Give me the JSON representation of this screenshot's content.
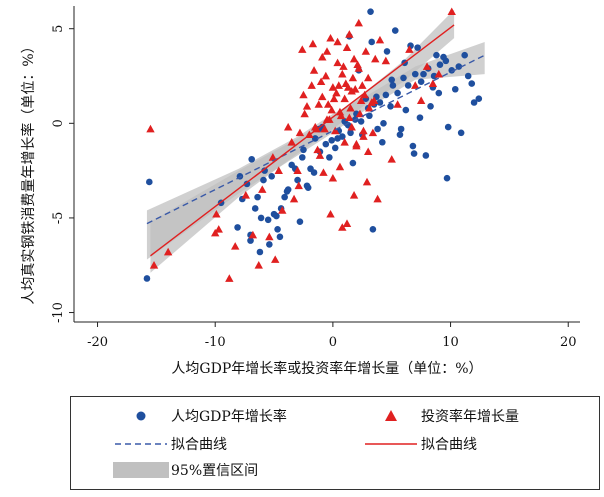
{
  "chart_data": {
    "type": "scatter",
    "title": "",
    "xlabel": "人均GDP年增长率或投资率年增长量（单位：%）",
    "ylabel": "人均真实钢铁消费量年增长率（单位：%）",
    "xlim": [
      -22,
      21
    ],
    "ylim": [
      -10.5,
      6.2
    ],
    "xticks": [
      -20,
      -10,
      0,
      10,
      20
    ],
    "xtick_labels": [
      "-20",
      "-10",
      "0",
      "10",
      "20"
    ],
    "yticks": [
      -10,
      -5,
      0,
      5
    ],
    "ytick_labels": [
      "-10",
      "-5",
      "0",
      "5"
    ],
    "grid": false,
    "legend_position": "bottom",
    "colors": {
      "gdp": "#1f4f9e",
      "invest": "#e02020",
      "ci": "#c0c0c0"
    },
    "series": [
      {
        "name": "人均GDP年增长率",
        "marker": "circle",
        "x": [
          -15.8,
          -15.6,
          -9.5,
          -8.1,
          -7.7,
          -7.0,
          -6.6,
          -6.2,
          -5.5,
          -5.0,
          -4.8,
          -4.5,
          -7.9,
          -7.3,
          -6.9,
          -5.8,
          -4.1,
          -3.5,
          -3.0,
          -2.6,
          -2.2,
          -1.9,
          -1.5,
          -1.1,
          -0.6,
          -0.1,
          0.5,
          1.0,
          1.5,
          2.0,
          2.4,
          3.0,
          3.5,
          4.0,
          4.5,
          5.1,
          5.5,
          6.0,
          6.4,
          7.0,
          7.5,
          8.1,
          8.6,
          9.1,
          9.6,
          10.1,
          10.7,
          11.2,
          11.8,
          12.4,
          -6.4,
          -5.9,
          -5.2,
          -4.4,
          -3.8,
          -3.2,
          -2.8,
          -2.1,
          -1.6,
          -0.9,
          -0.3,
          0.2,
          0.8,
          1.3,
          1.9,
          2.5,
          3.1,
          3.8,
          4.3,
          4.9,
          5.7,
          6.2,
          6.8,
          7.4,
          7.9,
          8.5,
          9.0,
          9.8,
          10.4,
          11.5,
          2.2,
          4.6,
          6.6,
          8.8,
          1.4,
          3.3,
          5.3,
          7.2,
          9.4,
          12.0,
          3.2,
          6.1,
          7.7,
          2.8,
          4.2,
          5.8,
          9.7,
          -2.5,
          -1.2,
          0.4,
          1.7,
          3.7,
          5.0,
          8.3,
          10.9,
          -3.9,
          -4.7,
          -6.1,
          -5.4,
          -7.0,
          3.4,
          6.9
        ],
        "y": [
          -8.2,
          -3.1,
          -4.2,
          -5.5,
          -4.0,
          -6.2,
          -4.5,
          -6.8,
          -5.1,
          -4.8,
          -4.9,
          -6.0,
          -2.8,
          -3.2,
          -1.9,
          -2.5,
          -3.9,
          -2.2,
          -3.0,
          -1.8,
          -3.3,
          -2.4,
          -0.8,
          -1.5,
          -1.1,
          -0.9,
          -0.4,
          0.1,
          -0.5,
          0.5,
          0.1,
          0.8,
          1.0,
          1.1,
          1.5,
          2.0,
          1.6,
          2.4,
          2.0,
          2.6,
          2.2,
          2.9,
          2.5,
          3.1,
          3.3,
          2.8,
          3.0,
          3.6,
          2.1,
          1.3,
          -3.9,
          -3.0,
          -2.8,
          -4.5,
          -3.5,
          -2.4,
          -5.2,
          -3.4,
          -2.6,
          -0.2,
          -1.8,
          -1.3,
          -0.7,
          -0.1,
          0.2,
          -0.6,
          0.4,
          -0.3,
          0.0,
          0.9,
          -0.6,
          0.7,
          -1.2,
          0.3,
          -1.7,
          1.9,
          1.6,
          -0.2,
          1.8,
          2.5,
          2.8,
          3.8,
          4.1,
          3.6,
          4.6,
          4.3,
          4.9,
          4.0,
          3.5,
          1.1,
          5.9,
          3.2,
          2.6,
          1.3,
          -1.0,
          -0.3,
          -2.9,
          -1.4,
          -0.3,
          -0.8,
          -2.1,
          1.4,
          2.3,
          0.9,
          -0.5,
          -3.6,
          -5.6,
          -5.0,
          -6.4,
          -5.9,
          -5.6,
          -1.6
        ],
        "fit": {
          "x": [
            -15.8,
            12.9
          ],
          "y": [
            -5.3,
            3.6
          ]
        }
      },
      {
        "name": "投资率年增长量",
        "marker": "triangle",
        "x": [
          -15.2,
          -15.5,
          -14.0,
          -10.0,
          -9.7,
          -8.3,
          -7.4,
          -6.8,
          -6.0,
          -5.1,
          -4.3,
          -3.5,
          -3.0,
          -2.5,
          -2.0,
          -1.6,
          -1.3,
          -1.0,
          -0.7,
          -0.4,
          -0.2,
          0.0,
          0.2,
          0.4,
          0.6,
          0.8,
          1.0,
          1.2,
          1.4,
          1.6,
          1.8,
          2.0,
          2.2,
          2.4,
          2.6,
          2.8,
          3.0,
          3.3,
          3.6,
          4.0,
          4.5,
          5.0,
          5.5,
          6.5,
          7.0,
          7.5,
          8.0,
          8.5,
          9.0,
          10.1,
          -2.8,
          -2.2,
          -1.5,
          -0.9,
          -0.5,
          -0.1,
          0.3,
          0.7,
          1.1,
          1.5,
          1.9,
          2.3,
          2.7,
          3.1,
          3.5,
          -1.8,
          -1.2,
          -0.6,
          0.1,
          0.5,
          0.9,
          1.3,
          1.7,
          2.1,
          2.5,
          -2.4,
          -1.4,
          -0.3,
          0.6,
          1.6,
          2.6,
          3.4,
          -1.1,
          0.0,
          1.0,
          2.0,
          3.0,
          -3.8,
          -4.6,
          -2.9,
          -3.3,
          -0.8,
          2.9,
          3.8,
          1.2,
          -0.2,
          0.8,
          1.8,
          -0.5,
          -1.7,
          2.2,
          -2.6,
          1.4,
          -0.9,
          0.4,
          -6.3,
          -5.4,
          -4.9,
          -8.8,
          -9.9
        ],
        "y": [
          -7.5,
          -0.3,
          -6.8,
          -5.8,
          -5.6,
          -6.5,
          -3.8,
          -5.9,
          -3.5,
          -1.8,
          -4.6,
          -1.0,
          -2.5,
          1.5,
          -0.6,
          2.8,
          -1.4,
          2.2,
          -0.3,
          1.0,
          4.5,
          1.9,
          -0.4,
          3.2,
          -2.3,
          2.6,
          1.3,
          4.0,
          0.3,
          1.7,
          3.4,
          -1.1,
          2.9,
          1.2,
          -0.4,
          3.8,
          2.4,
          1.1,
          3.4,
          4.4,
          3.3,
          -1.9,
          1.0,
          3.9,
          2.0,
          1.2,
          3.0,
          2.1,
          2.6,
          5.9,
          -0.5,
          0.9,
          -0.2,
          1.4,
          0.2,
          0.7,
          1.6,
          0.4,
          2.1,
          0.8,
          1.8,
          0.5,
          1.5,
          0.8,
          1.2,
          2.0,
          1.0,
          2.5,
          1.3,
          2.0,
          3.0,
          1.9,
          2.4,
          3.1,
          2.0,
          0.5,
          -0.3,
          0.2,
          0.6,
          -0.2,
          -0.7,
          -0.5,
          -1.7,
          -2.9,
          -1.0,
          -1.2,
          -1.5,
          -0.2,
          -2.5,
          -3.3,
          -4.0,
          -2.6,
          -3.1,
          -4.0,
          -5.3,
          -4.8,
          -5.5,
          -3.8,
          3.8,
          4.2,
          5.3,
          3.9,
          4.7,
          3.5,
          4.3,
          -7.5,
          -6.0,
          -7.2,
          -8.2,
          -4.8
        ],
        "fit": {
          "x": [
            -15.5,
            10.3
          ],
          "y": [
            -7.0,
            5.2
          ]
        }
      }
    ],
    "ci_band": {
      "gdp": {
        "x": [
          -15.8,
          -8.0,
          -3.0,
          0.0,
          3.0,
          7.0,
          12.9
        ],
        "lower": [
          -7.2,
          -3.7,
          -1.7,
          -0.5,
          0.8,
          2.3,
          2.6
        ],
        "upper": [
          -4.6,
          -2.4,
          -0.7,
          0.5,
          1.5,
          3.0,
          4.3
        ]
      },
      "invest": {
        "x": [
          -15.5,
          -8.0,
          -3.0,
          0.0,
          3.0,
          6.0,
          10.3
        ],
        "lower": [
          -7.9,
          -3.9,
          -1.6,
          -0.3,
          1.1,
          2.2,
          4.5
        ],
        "upper": [
          -5.2,
          -2.5,
          -0.8,
          0.3,
          1.8,
          3.3,
          6.0
        ]
      }
    }
  },
  "legend": {
    "items": [
      {
        "symbol": "circle",
        "label": "人均GDP年增长率"
      },
      {
        "symbol": "triangle",
        "label": "投资率年增长量"
      },
      {
        "symbol": "dashed-line",
        "label": "拟合曲线"
      },
      {
        "symbol": "solid-line",
        "label": "拟合曲线"
      },
      {
        "symbol": "band",
        "label": "95%置信区间"
      }
    ]
  }
}
